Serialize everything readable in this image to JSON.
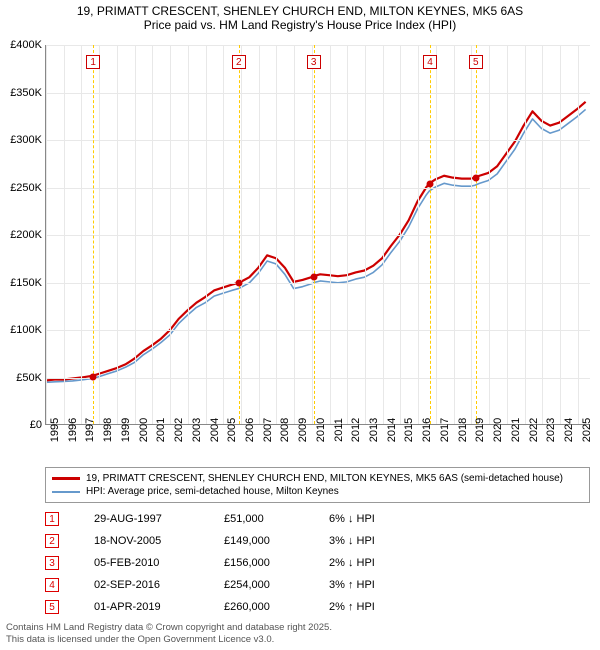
{
  "title": {
    "line1": "19, PRIMATT CRESCENT, SHENLEY CHURCH END, MILTON KEYNES, MK5 6AS",
    "line2": "Price paid vs. HM Land Registry's House Price Index (HPI)",
    "fontsize": 12,
    "color": "#000000"
  },
  "chart": {
    "type": "line",
    "background_color": "#ffffff",
    "grid_color": "#e8e8e8",
    "axis_color": "#888888",
    "x_axis": {
      "min": 1995,
      "max": 2025.75,
      "ticks": [
        1995,
        1996,
        1997,
        1998,
        1999,
        2000,
        2001,
        2002,
        2003,
        2004,
        2005,
        2006,
        2007,
        2008,
        2009,
        2010,
        2011,
        2012,
        2013,
        2014,
        2015,
        2016,
        2017,
        2018,
        2019,
        2020,
        2021,
        2022,
        2023,
        2024,
        2025
      ],
      "label_fontsize": 11
    },
    "y_axis": {
      "min": 0,
      "max": 400000,
      "tick_step": 50000,
      "tick_labels": [
        "£0",
        "£50K",
        "£100K",
        "£150K",
        "£200K",
        "£250K",
        "£300K",
        "£350K",
        "£400K"
      ],
      "label_fontsize": 11
    },
    "series": [
      {
        "name": "19, PRIMATT CRESCENT, SHENLEY CHURCH END, MILTON KEYNES, MK5 6AS (semi-detached house)",
        "color": "#cc0000",
        "line_width": 2.2,
        "data": [
          [
            1995.0,
            46000
          ],
          [
            1995.5,
            47000
          ],
          [
            1996.0,
            47000
          ],
          [
            1996.5,
            48000
          ],
          [
            1997.0,
            49000
          ],
          [
            1997.66,
            51000
          ],
          [
            1998.0,
            53000
          ],
          [
            1998.5,
            56000
          ],
          [
            1999.0,
            59000
          ],
          [
            1999.5,
            63000
          ],
          [
            2000.0,
            69000
          ],
          [
            2000.5,
            77000
          ],
          [
            2001.0,
            83000
          ],
          [
            2001.5,
            90000
          ],
          [
            2002.0,
            99000
          ],
          [
            2002.5,
            111000
          ],
          [
            2003.0,
            120000
          ],
          [
            2003.5,
            128000
          ],
          [
            2004.0,
            134000
          ],
          [
            2004.5,
            141000
          ],
          [
            2005.0,
            144000
          ],
          [
            2005.5,
            147000
          ],
          [
            2005.88,
            149000
          ],
          [
            2006.0,
            150000
          ],
          [
            2006.5,
            155000
          ],
          [
            2007.0,
            165000
          ],
          [
            2007.5,
            178000
          ],
          [
            2008.0,
            175000
          ],
          [
            2008.5,
            165000
          ],
          [
            2009.0,
            150000
          ],
          [
            2009.5,
            152000
          ],
          [
            2010.0,
            155000
          ],
          [
            2010.1,
            156000
          ],
          [
            2010.5,
            158000
          ],
          [
            2011.0,
            157000
          ],
          [
            2011.5,
            156000
          ],
          [
            2012.0,
            157000
          ],
          [
            2012.5,
            160000
          ],
          [
            2013.0,
            162000
          ],
          [
            2013.5,
            167000
          ],
          [
            2014.0,
            175000
          ],
          [
            2014.5,
            188000
          ],
          [
            2015.0,
            200000
          ],
          [
            2015.5,
            215000
          ],
          [
            2016.0,
            235000
          ],
          [
            2016.5,
            250000
          ],
          [
            2016.67,
            254000
          ],
          [
            2017.0,
            258000
          ],
          [
            2017.5,
            262000
          ],
          [
            2018.0,
            260000
          ],
          [
            2018.5,
            259000
          ],
          [
            2019.0,
            259000
          ],
          [
            2019.25,
            260000
          ],
          [
            2019.5,
            262000
          ],
          [
            2020.0,
            265000
          ],
          [
            2020.5,
            272000
          ],
          [
            2021.0,
            285000
          ],
          [
            2021.5,
            298000
          ],
          [
            2022.0,
            315000
          ],
          [
            2022.5,
            330000
          ],
          [
            2023.0,
            320000
          ],
          [
            2023.5,
            315000
          ],
          [
            2024.0,
            318000
          ],
          [
            2024.5,
            325000
          ],
          [
            2025.0,
            332000
          ],
          [
            2025.5,
            340000
          ]
        ]
      },
      {
        "name": "HPI: Average price, semi-detached house, Milton Keynes",
        "color": "#6699cc",
        "line_width": 1.6,
        "data": [
          [
            1995.0,
            44000
          ],
          [
            1995.5,
            44500
          ],
          [
            1996.0,
            45000
          ],
          [
            1996.5,
            45500
          ],
          [
            1997.0,
            46500
          ],
          [
            1997.66,
            48000
          ],
          [
            1998.0,
            50000
          ],
          [
            1998.5,
            53000
          ],
          [
            1999.0,
            56000
          ],
          [
            1999.5,
            60000
          ],
          [
            2000.0,
            65000
          ],
          [
            2000.5,
            73000
          ],
          [
            2001.0,
            79000
          ],
          [
            2001.5,
            86000
          ],
          [
            2002.0,
            94000
          ],
          [
            2002.5,
            106000
          ],
          [
            2003.0,
            115000
          ],
          [
            2003.5,
            123000
          ],
          [
            2004.0,
            128000
          ],
          [
            2004.5,
            135000
          ],
          [
            2005.0,
            138000
          ],
          [
            2005.5,
            141000
          ],
          [
            2005.88,
            143000
          ],
          [
            2006.0,
            144000
          ],
          [
            2006.5,
            149000
          ],
          [
            2007.0,
            159000
          ],
          [
            2007.5,
            172000
          ],
          [
            2008.0,
            169000
          ],
          [
            2008.5,
            158000
          ],
          [
            2009.0,
            143000
          ],
          [
            2009.5,
            145000
          ],
          [
            2010.0,
            148000
          ],
          [
            2010.1,
            149000
          ],
          [
            2010.5,
            151000
          ],
          [
            2011.0,
            150000
          ],
          [
            2011.5,
            149000
          ],
          [
            2012.0,
            150000
          ],
          [
            2012.5,
            153000
          ],
          [
            2013.0,
            155000
          ],
          [
            2013.5,
            160000
          ],
          [
            2014.0,
            168000
          ],
          [
            2014.5,
            181000
          ],
          [
            2015.0,
            193000
          ],
          [
            2015.5,
            208000
          ],
          [
            2016.0,
            227000
          ],
          [
            2016.5,
            242000
          ],
          [
            2016.67,
            246000
          ],
          [
            2017.0,
            250000
          ],
          [
            2017.5,
            254000
          ],
          [
            2018.0,
            252000
          ],
          [
            2018.5,
            251000
          ],
          [
            2019.0,
            251000
          ],
          [
            2019.25,
            252000
          ],
          [
            2019.5,
            254000
          ],
          [
            2020.0,
            257000
          ],
          [
            2020.5,
            264000
          ],
          [
            2021.0,
            277000
          ],
          [
            2021.5,
            290000
          ],
          [
            2022.0,
            307000
          ],
          [
            2022.5,
            322000
          ],
          [
            2023.0,
            312000
          ],
          [
            2023.5,
            307000
          ],
          [
            2024.0,
            310000
          ],
          [
            2024.5,
            317000
          ],
          [
            2025.0,
            324000
          ],
          [
            2025.5,
            332000
          ]
        ]
      }
    ],
    "markers": [
      {
        "num": "1",
        "x": 1997.66,
        "y": 51000,
        "line_color": "#ffcc00"
      },
      {
        "num": "2",
        "x": 2005.88,
        "y": 149000,
        "line_color": "#ffcc00"
      },
      {
        "num": "3",
        "x": 2010.1,
        "y": 156000,
        "line_color": "#ffcc00"
      },
      {
        "num": "4",
        "x": 2016.67,
        "y": 254000,
        "line_color": "#ffcc00"
      },
      {
        "num": "5",
        "x": 2019.25,
        "y": 260000,
        "line_color": "#ffcc00"
      }
    ],
    "marker_dot_color": "#cc0000",
    "marker_box_border": "#cc0000"
  },
  "legend": {
    "border_color": "#999999",
    "items": [
      {
        "color": "#cc0000",
        "width": 2.5,
        "label": "19, PRIMATT CRESCENT, SHENLEY CHURCH END, MILTON KEYNES, MK5 6AS (semi-detached house)"
      },
      {
        "color": "#6699cc",
        "width": 2,
        "label": "HPI: Average price, semi-detached house, Milton Keynes"
      }
    ]
  },
  "events": [
    {
      "num": "1",
      "date": "29-AUG-1997",
      "price": "£51,000",
      "change": "6% ↓ HPI"
    },
    {
      "num": "2",
      "date": "18-NOV-2005",
      "price": "£149,000",
      "change": "3% ↓ HPI"
    },
    {
      "num": "3",
      "date": "05-FEB-2010",
      "price": "£156,000",
      "change": "2% ↓ HPI"
    },
    {
      "num": "4",
      "date": "02-SEP-2016",
      "price": "£254,000",
      "change": "3% ↑ HPI"
    },
    {
      "num": "5",
      "date": "01-APR-2019",
      "price": "£260,000",
      "change": "2% ↑ HPI"
    }
  ],
  "footer": {
    "line1": "Contains HM Land Registry data © Crown copyright and database right 2025.",
    "line2": "This data is licensed under the Open Government Licence v3.0.",
    "color": "#555555"
  }
}
